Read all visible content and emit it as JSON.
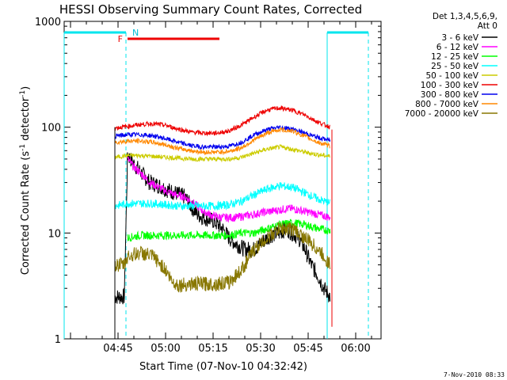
{
  "chart_data": {
    "type": "line",
    "title": "HESSI Observing Summary Count Rates, Corrected",
    "xlabel": "Start Time (07-Nov-10 04:32:42)",
    "ylabel_main": "Corrected Count Rate (s",
    "ylabel_sup1": "-1",
    "ylabel_mid": " detector",
    "ylabel_sup2": "-1",
    "ylabel_end": ")",
    "y_scale": "log",
    "ylim": [
      1,
      1000
    ],
    "xlim_minutes": [
      -32,
      68
    ],
    "x_unit": "minutes after 05:00 UT",
    "x_ticks": [
      {
        "label": "04:45",
        "value": -15
      },
      {
        "label": "05:00",
        "value": 0
      },
      {
        "label": "05:15",
        "value": 15
      },
      {
        "label": "05:30",
        "value": 30
      },
      {
        "label": "05:45",
        "value": 45
      },
      {
        "label": "06:00",
        "value": 60
      }
    ],
    "y_ticks": [
      {
        "label": "1",
        "value": 1
      },
      {
        "label": "10",
        "value": 10
      },
      {
        "label": "100",
        "value": 100
      },
      {
        "label": "1000",
        "value": 1000
      }
    ],
    "legend_title": [
      "Det 1,3,4,5,6,9,",
      "Att 0"
    ],
    "legend_position": "right-outside",
    "series": [
      {
        "name": "3 - 6 keV",
        "color": "#000000",
        "x": [
          -16,
          -13,
          -12,
          -10,
          -7,
          -5,
          -2,
          0,
          3,
          6,
          8,
          10,
          12,
          15,
          18,
          20,
          22,
          25,
          28,
          30,
          33,
          36,
          38,
          40,
          42,
          44,
          46,
          48,
          50,
          52
        ],
        "y": [
          2.5,
          2.5,
          55,
          45,
          35,
          30,
          28,
          26,
          24,
          22,
          18,
          15,
          14,
          13,
          11,
          9,
          8,
          7,
          7,
          8,
          9.5,
          10,
          11,
          10,
          9,
          7,
          5,
          4,
          3,
          2.5
        ]
      },
      {
        "name": "6 - 12 keV",
        "color": "#ff00ff",
        "x": [
          -12,
          -10,
          -7,
          -5,
          -2,
          0,
          3,
          6,
          8,
          10,
          12,
          15,
          18,
          20,
          22,
          25,
          28,
          30,
          33,
          36,
          38,
          40,
          42,
          44,
          46,
          48,
          50,
          52
        ],
        "y": [
          50,
          42,
          35,
          30,
          27,
          25,
          23,
          22,
          20,
          18,
          16,
          14.5,
          14,
          14,
          14,
          14.5,
          15,
          15.5,
          16,
          16.5,
          17,
          17,
          16.5,
          16,
          15.5,
          15,
          14.5,
          14
        ]
      },
      {
        "name": "12 - 25 keV",
        "color": "#00ff00",
        "x": [
          -12,
          -8,
          -4,
          0,
          4,
          8,
          12,
          16,
          20,
          24,
          28,
          32,
          36,
          40,
          44,
          48,
          52
        ],
        "y": [
          9,
          9.5,
          9.5,
          9.5,
          9.5,
          9.5,
          9.5,
          9.5,
          9.5,
          10,
          10,
          11,
          12,
          12.5,
          12,
          11,
          10.5
        ]
      },
      {
        "name": "25 - 50 keV",
        "color": "#00ffff",
        "x": [
          -16,
          -12,
          -8,
          -4,
          0,
          4,
          8,
          12,
          16,
          20,
          24,
          28,
          32,
          36,
          40,
          44,
          48,
          52
        ],
        "y": [
          18,
          19,
          19,
          19,
          18.5,
          18,
          18,
          18,
          18,
          18.5,
          20,
          23,
          26,
          28,
          27,
          24,
          21,
          19
        ]
      },
      {
        "name": "50 - 100 keV",
        "color": "#cccc00",
        "x": [
          -16,
          -12,
          -8,
          -4,
          0,
          4,
          8,
          12,
          16,
          20,
          24,
          28,
          32,
          36,
          40,
          44,
          48,
          52
        ],
        "y": [
          52,
          54,
          54,
          53,
          52,
          51,
          50,
          50,
          50,
          50,
          52,
          57,
          62,
          65,
          62,
          58,
          55,
          53
        ]
      },
      {
        "name": "100 - 300 keV",
        "color": "#ee0000",
        "x": [
          -16,
          -12,
          -8,
          -4,
          0,
          4,
          8,
          12,
          16,
          20,
          24,
          28,
          32,
          36,
          40,
          44,
          48,
          52
        ],
        "y": [
          98,
          102,
          106,
          108,
          104,
          96,
          90,
          88,
          88,
          92,
          105,
          125,
          145,
          152,
          145,
          130,
          112,
          100
        ]
      },
      {
        "name": "300 - 800 keV",
        "color": "#0000ee",
        "x": [
          -16,
          -12,
          -8,
          -4,
          0,
          4,
          8,
          12,
          16,
          20,
          24,
          28,
          32,
          36,
          40,
          44,
          48,
          52
        ],
        "y": [
          82,
          85,
          85,
          83,
          78,
          72,
          67,
          65,
          65,
          66,
          72,
          85,
          95,
          100,
          96,
          88,
          80,
          75
        ]
      },
      {
        "name": "800 - 7000 keV",
        "color": "#ff8800",
        "x": [
          -16,
          -12,
          -8,
          -4,
          0,
          4,
          8,
          12,
          16,
          20,
          24,
          28,
          32,
          36,
          40,
          44,
          48,
          52
        ],
        "y": [
          72,
          74,
          74,
          72,
          68,
          63,
          60,
          58,
          58,
          59,
          64,
          76,
          88,
          95,
          92,
          82,
          72,
          66
        ]
      },
      {
        "name": "7000 - 20000 keV",
        "color": "#887700",
        "x": [
          -16,
          -13,
          -12,
          -8,
          -4,
          0,
          2,
          4,
          8,
          12,
          16,
          20,
          24,
          28,
          32,
          36,
          40,
          44,
          46,
          48,
          50,
          52
        ],
        "y": [
          5,
          5,
          6,
          6.5,
          6,
          4.5,
          3.5,
          3.2,
          3.3,
          3.3,
          3.3,
          3.4,
          4.5,
          7,
          9,
          11,
          11,
          9,
          8,
          7,
          6,
          5
        ]
      }
    ],
    "annotations": {
      "flag_F_label": "F",
      "flag_N_label": "N",
      "date_stamp": "7-Nov-2010 08:33"
    }
  }
}
